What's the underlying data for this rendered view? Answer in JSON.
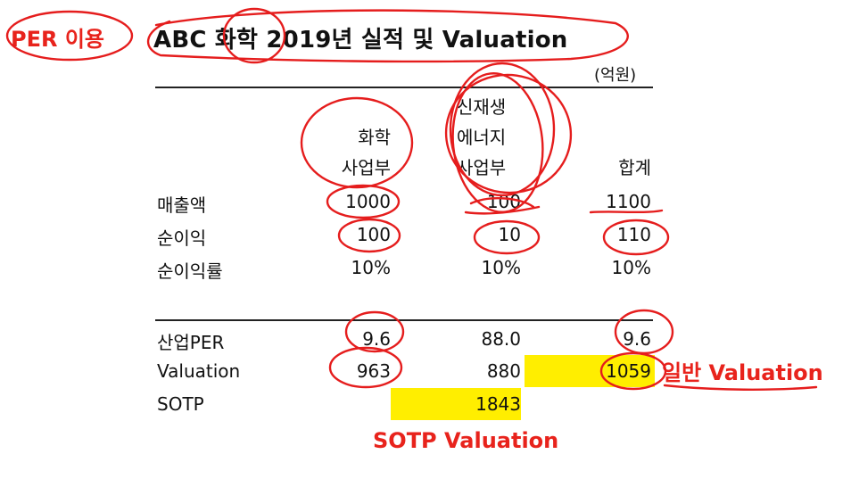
{
  "annotations": {
    "method": "PER 이용",
    "normal_valuation": "일반 Valuation",
    "sotp_valuation": "SOTP Valuation"
  },
  "title": "ABC 화학 2019년 실적 및 Valuation",
  "unit": "(억원)",
  "columns": {
    "chem": [
      "화학",
      "사업부"
    ],
    "renew": [
      "신재생",
      "에너지",
      "사업부"
    ],
    "total": "합계"
  },
  "rows": [
    {
      "label": "매출액",
      "chem": "1000",
      "renew": "100",
      "total": "1100"
    },
    {
      "label": "순이익",
      "chem": "100",
      "renew": "10",
      "total": "110"
    },
    {
      "label": "순이익률",
      "chem": "10%",
      "renew": "10%",
      "total": "10%"
    }
  ],
  "valuation_rows": [
    {
      "label": "산업PER",
      "chem": "9.6",
      "renew": "88.0",
      "total": "9.6"
    },
    {
      "label": "Valuation",
      "chem": "963",
      "renew": "880",
      "total": "1059"
    },
    {
      "label": "SOTP",
      "chem": "",
      "renew": "1843",
      "total": ""
    }
  ],
  "highlight_color": "#ffee00",
  "annotation_color": "#e8231c"
}
